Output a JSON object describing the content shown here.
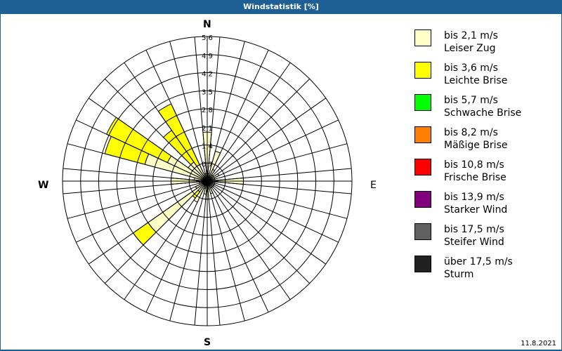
{
  "title": "Windstatistik [%]",
  "date": "11.8.2021",
  "directions": {
    "n": "N",
    "e": "E",
    "s": "S",
    "w": "W"
  },
  "legend": [
    {
      "range": "bis 2,1 m/s",
      "name": "Leiser Zug",
      "color": "#ffffc8"
    },
    {
      "range": "bis 3,6 m/s",
      "name": "Leichte Brise",
      "color": "#ffff00"
    },
    {
      "range": "bis 5,7 m/s",
      "name": "Schwache Brise",
      "color": "#00ff00"
    },
    {
      "range": "bis 8,2 m/s",
      "name": "Mäßige Brise",
      "color": "#ff8000"
    },
    {
      "range": "bis 10,8 m/s",
      "name": "Frische Brise",
      "color": "#ff0000"
    },
    {
      "range": "bis 13,9 m/s",
      "name": "Starker Wind",
      "color": "#800080"
    },
    {
      "range": "bis 17,5 m/s",
      "name": "Steifer Wind",
      "color": "#606060"
    },
    {
      "range": "über 17,5 m/s",
      "name": "Sturm",
      "color": "#202020"
    }
  ],
  "chart_data": {
    "type": "polar-bar (wind rose)",
    "title": "Windstatistik [%]",
    "radial_ticks": [
      "0,7",
      "1,4",
      "2,1",
      "2,8",
      "3,5",
      "4,2",
      "4,9",
      "5,6"
    ],
    "radial_max": 5.6,
    "sector_width_deg": 10,
    "series": [
      {
        "name": "bis 2,1 m/s (Leiser Zug)",
        "color": "#ffffc8"
      },
      {
        "name": "bis 3,6 m/s (Leichte Brise)",
        "color": "#ffff00"
      }
    ],
    "sectors": [
      {
        "dir": 0,
        "values": [
          1.9,
          0
        ]
      },
      {
        "dir": 10,
        "values": [
          0.3,
          0
        ]
      },
      {
        "dir": 20,
        "values": [
          1.2,
          0
        ]
      },
      {
        "dir": 30,
        "values": [
          0.5,
          0
        ]
      },
      {
        "dir": 40,
        "values": [
          0.3,
          0
        ]
      },
      {
        "dir": 50,
        "values": [
          0.3,
          0
        ]
      },
      {
        "dir": 60,
        "values": [
          0.5,
          0
        ]
      },
      {
        "dir": 70,
        "values": [
          0.3,
          0
        ]
      },
      {
        "dir": 80,
        "values": [
          0.3,
          0
        ]
      },
      {
        "dir": 90,
        "values": [
          1.4,
          0
        ]
      },
      {
        "dir": 100,
        "values": [
          0.3,
          0
        ]
      },
      {
        "dir": 110,
        "values": [
          0.3,
          0
        ]
      },
      {
        "dir": 120,
        "values": [
          0.3,
          0
        ]
      },
      {
        "dir": 130,
        "values": [
          0.3,
          0
        ]
      },
      {
        "dir": 140,
        "values": [
          0.3,
          0
        ]
      },
      {
        "dir": 150,
        "values": [
          0.3,
          0
        ]
      },
      {
        "dir": 160,
        "values": [
          0.5,
          0
        ]
      },
      {
        "dir": 170,
        "values": [
          0.3,
          0
        ]
      },
      {
        "dir": 180,
        "values": [
          0.7,
          0
        ]
      },
      {
        "dir": 190,
        "values": [
          0.5,
          0
        ]
      },
      {
        "dir": 200,
        "values": [
          0.3,
          0
        ]
      },
      {
        "dir": 210,
        "values": [
          0.9,
          0
        ]
      },
      {
        "dir": 220,
        "values": [
          0.5,
          0.3
        ]
      },
      {
        "dir": 230,
        "values": [
          2.8,
          0.7
        ]
      },
      {
        "dir": 240,
        "values": [
          0.5,
          0
        ]
      },
      {
        "dir": 250,
        "values": [
          0.3,
          0
        ]
      },
      {
        "dir": 260,
        "values": [
          0.3,
          0
        ]
      },
      {
        "dir": 270,
        "values": [
          1.4,
          0
        ]
      },
      {
        "dir": 280,
        "values": [
          0.5,
          0
        ]
      },
      {
        "dir": 290,
        "values": [
          2.5,
          1.6
        ]
      },
      {
        "dir": 300,
        "values": [
          1.7,
          2.6
        ]
      },
      {
        "dir": 310,
        "values": [
          0.9,
          0
        ]
      },
      {
        "dir": 320,
        "values": [
          0.9,
          1.5
        ]
      },
      {
        "dir": 330,
        "values": [
          0.7,
          2.6
        ]
      },
      {
        "dir": 340,
        "values": [
          0.3,
          0
        ]
      },
      {
        "dir": 350,
        "values": [
          0.3,
          0
        ]
      }
    ]
  }
}
